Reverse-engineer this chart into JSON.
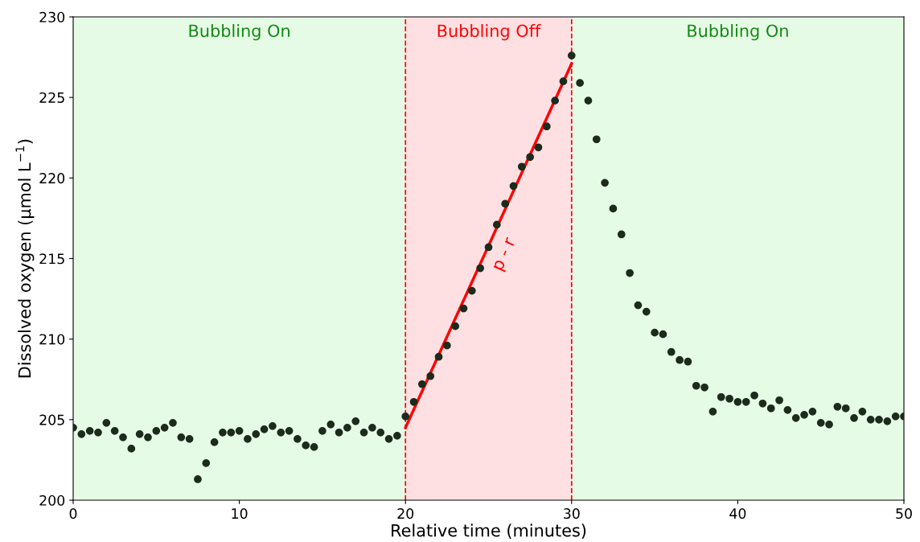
{
  "chart_data": {
    "type": "scatter",
    "xlabel": "Relative time (minutes)",
    "ylabel": "Dissolved oxygen (μmol L$^{−1}$)",
    "xlim": [
      0,
      50
    ],
    "ylim": [
      200,
      230
    ],
    "xticks": [
      0,
      10,
      20,
      30,
      40,
      50
    ],
    "yticks": [
      200,
      205,
      210,
      215,
      220,
      225,
      230
    ],
    "grid": false,
    "marker": "circle",
    "series": [
      {
        "color": "#1c2b1c",
        "x": [
          0,
          0.5,
          1,
          1.5,
          2,
          2.5,
          3,
          3.5,
          4,
          4.5,
          5,
          5.5,
          6,
          6.5,
          7,
          7.5,
          8,
          8.5,
          9,
          9.5,
          10,
          10.5,
          11,
          11.5,
          12,
          12.5,
          13,
          13.5,
          14,
          14.5,
          15,
          15.5,
          16,
          16.5,
          17,
          17.5,
          18,
          18.5,
          19,
          19.5,
          20,
          20.5,
          21,
          21.5,
          22,
          22.5,
          23,
          23.5,
          24,
          24.5,
          25,
          25.5,
          26,
          26.5,
          27,
          27.5,
          28,
          28.5,
          29,
          29.5,
          30,
          30.5,
          31,
          31.5,
          32,
          32.5,
          33,
          33.5,
          34,
          34.5,
          35,
          35.5,
          36,
          36.5,
          37,
          37.5,
          38,
          38.5,
          39,
          39.5,
          40,
          40.5,
          41,
          41.5,
          42,
          42.5,
          43,
          43.5,
          44,
          44.5,
          45,
          45.5,
          46,
          46.5,
          47,
          47.5,
          48,
          48.5,
          49,
          49.5,
          50
        ],
        "values": [
          204.5,
          204.1,
          204.3,
          204.2,
          204.8,
          204.3,
          203.9,
          203.2,
          204.1,
          203.9,
          204.3,
          204.5,
          204.8,
          203.9,
          203.8,
          201.3,
          202.3,
          203.6,
          204.2,
          204.2,
          204.3,
          203.8,
          204.1,
          204.4,
          204.6,
          204.2,
          204.3,
          203.8,
          203.4,
          203.3,
          204.3,
          204.7,
          204.2,
          204.5,
          204.9,
          204.2,
          204.5,
          204.2,
          203.8,
          204.0,
          205.2,
          206.1,
          207.2,
          207.7,
          208.9,
          209.6,
          210.8,
          211.9,
          213.0,
          214.4,
          215.7,
          217.1,
          218.4,
          219.5,
          220.7,
          221.3,
          221.9,
          223.2,
          224.8,
          226.0,
          227.6,
          225.9,
          224.8,
          222.4,
          219.7,
          218.1,
          216.5,
          214.1,
          212.1,
          211.7,
          210.4,
          210.3,
          209.2,
          208.7,
          208.6,
          207.1,
          207.0,
          205.5,
          206.4,
          206.3,
          206.1,
          206.1,
          206.5,
          206.0,
          205.7,
          206.2,
          205.6,
          205.1,
          205.3,
          205.5,
          204.8,
          204.7,
          205.8,
          205.7,
          205.1,
          205.5,
          205.0,
          205.0,
          204.9,
          205.2,
          205.2
        ]
      },
      {
        "type": "line",
        "color": "#ff0000",
        "marker": "none",
        "x": [
          20,
          30
        ],
        "values": [
          204.5,
          227.1
        ]
      }
    ],
    "bands": [
      {
        "axis": "x",
        "from": 0,
        "to": 20,
        "label": "Bubbling On",
        "color": "#e6fbe6"
      },
      {
        "axis": "x",
        "from": 20,
        "to": 30,
        "label": "Bubbling Off",
        "color": "#ffe0e2"
      },
      {
        "axis": "x",
        "from": 30,
        "to": 50,
        "label": "Bubbling On",
        "color": "#e6fbe6"
      }
    ],
    "ref_lines": [
      {
        "axis": "x",
        "value": 20,
        "color": "#ff0000",
        "line_style": "dashed"
      },
      {
        "axis": "x",
        "value": 30,
        "color": "#ff0000",
        "line_style": "dashed"
      }
    ],
    "annotations": [
      "p - r"
    ]
  }
}
